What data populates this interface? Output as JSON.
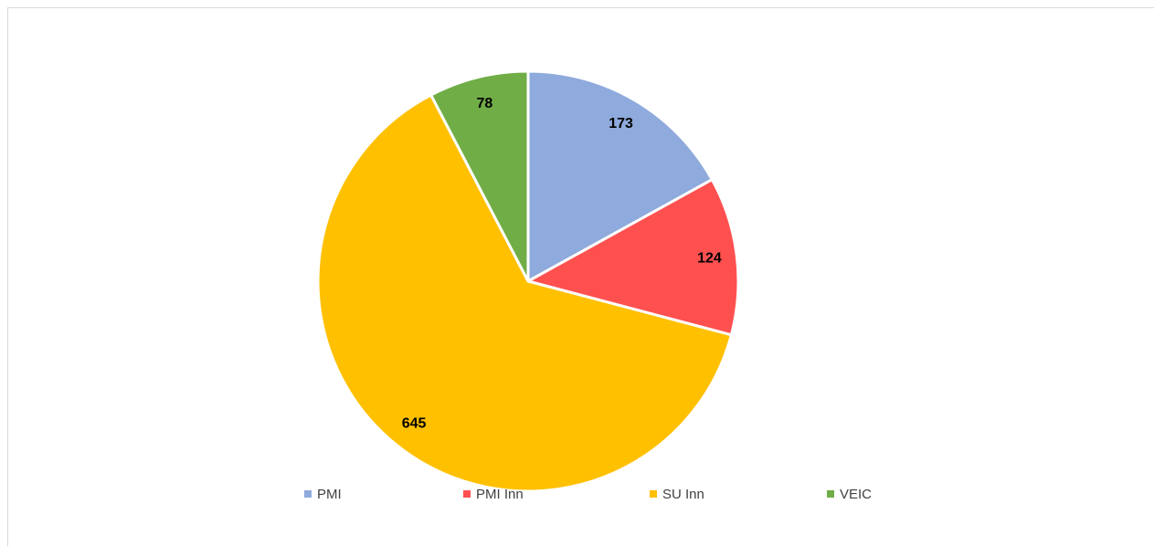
{
  "chart_data": {
    "type": "pie",
    "categories": [
      "PMI",
      "PMI Inn",
      "SU Inn",
      "VEIC"
    ],
    "values": [
      173,
      124,
      645,
      78
    ],
    "colors": [
      "#8faadc",
      "#ff5050",
      "#ffc000",
      "#70ad47"
    ],
    "legend": "bottom"
  }
}
